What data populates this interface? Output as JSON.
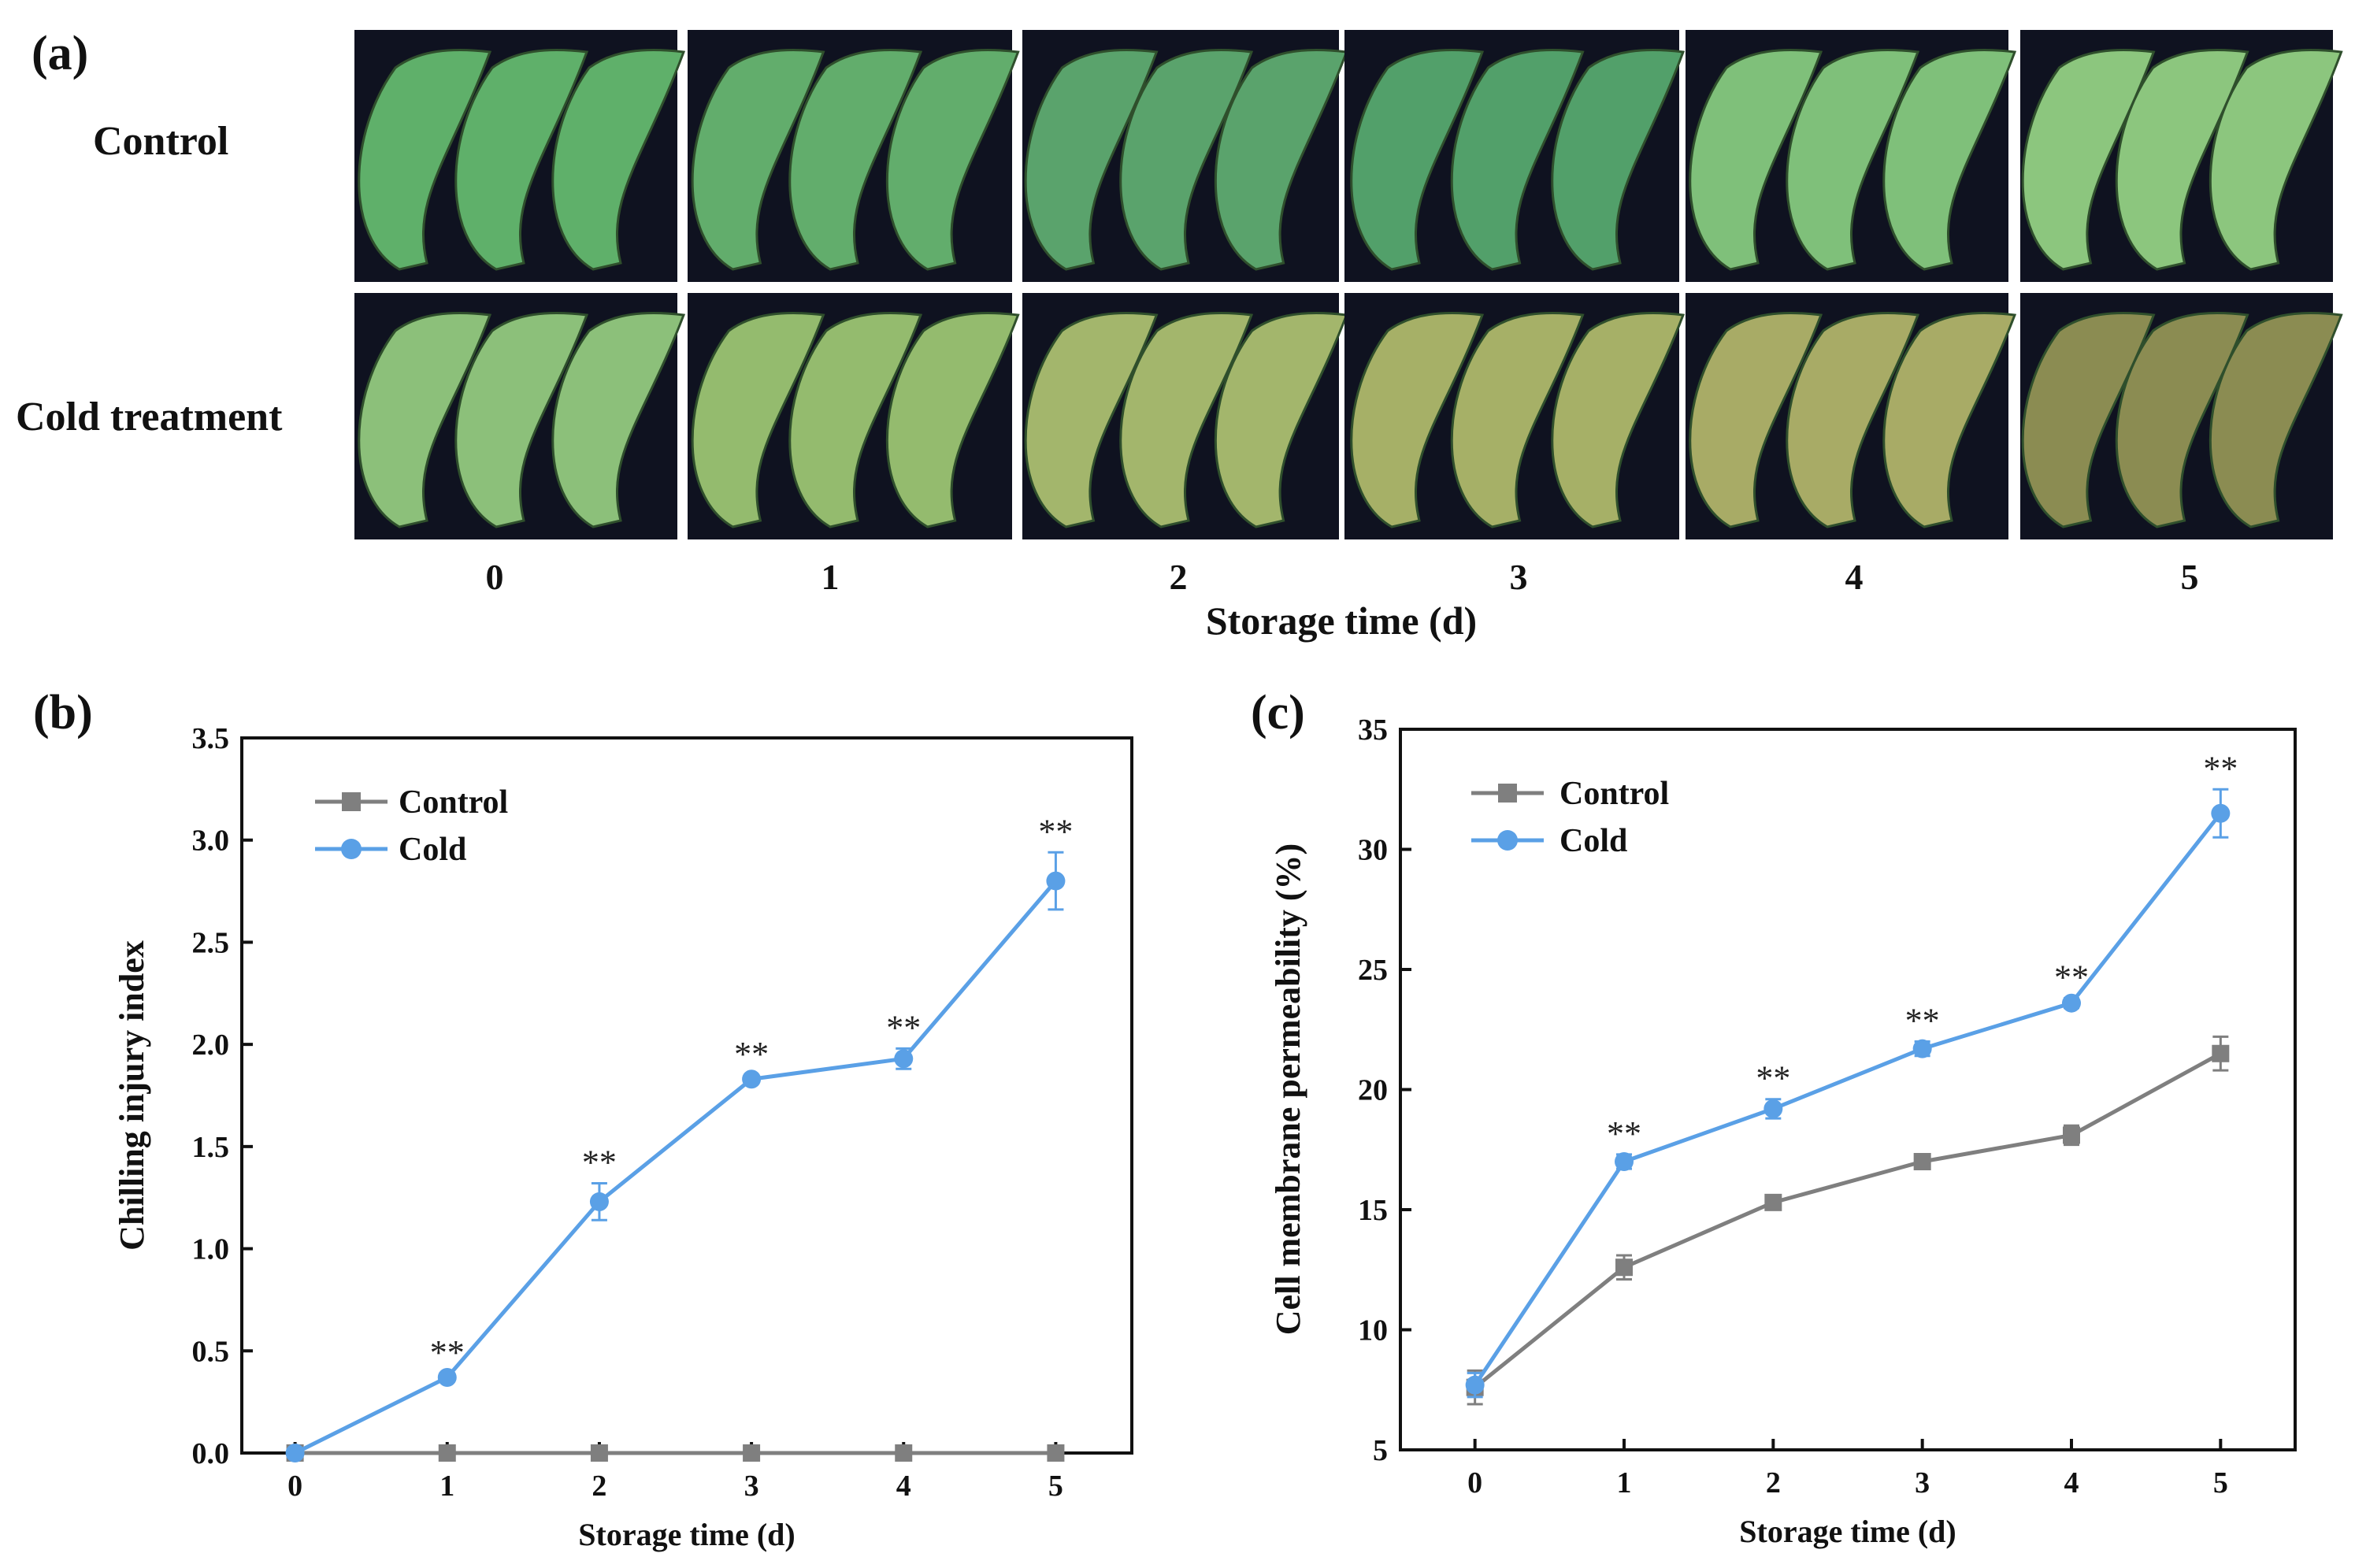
{
  "panel_a": {
    "label": "(a)",
    "row_labels": [
      "Control",
      "Cold treatment"
    ],
    "time_labels": [
      "0",
      "1",
      "2",
      "3",
      "4",
      "5"
    ],
    "xlabel": "Storage time (d)",
    "colors": {
      "background": "#0f1220",
      "control": [
        "#5fb06a",
        "#62ad6c",
        "#5aa36c",
        "#52a06a",
        "#7fc07a",
        "#8cc67e"
      ],
      "cold": [
        "#8cc07a",
        "#94bb6e",
        "#a3b66c",
        "#a6b067",
        "#a8ab66",
        "#8b8c52"
      ]
    }
  },
  "chart_data": [
    {
      "id": "b",
      "panel_label": "(b)",
      "type": "line",
      "x": [
        0,
        1,
        2,
        3,
        4,
        5
      ],
      "xticks": [
        "0",
        "1",
        "2",
        "3",
        "4",
        "5"
      ],
      "yticks": [
        "0.0",
        "0.5",
        "1.0",
        "1.5",
        "2.0",
        "2.5",
        "3.0",
        "3.5"
      ],
      "xlim": [
        -0.35,
        5.5
      ],
      "ylim": [
        0,
        3.5
      ],
      "xlabel": "Storage time (d)",
      "ylabel": "Chilling injury index",
      "legend": [
        "Control",
        "Cold"
      ],
      "legend_position": "top-left",
      "series": [
        {
          "name": "Control",
          "marker": "square",
          "color": "#7f7f7f",
          "values": [
            0,
            0,
            0,
            0,
            0,
            0
          ],
          "err": [
            0,
            0,
            0,
            0,
            0,
            0
          ]
        },
        {
          "name": "Cold",
          "marker": "circle",
          "color": "#5aa0e6",
          "values": [
            0,
            0.37,
            1.23,
            1.83,
            1.93,
            2.8
          ],
          "err": [
            0,
            0.02,
            0.09,
            0.02,
            0.05,
            0.14
          ]
        }
      ],
      "annotations": [
        {
          "x": 1,
          "text": "**"
        },
        {
          "x": 2,
          "text": "**"
        },
        {
          "x": 3,
          "text": "**"
        },
        {
          "x": 4,
          "text": "**"
        },
        {
          "x": 5,
          "text": "**"
        }
      ]
    },
    {
      "id": "c",
      "panel_label": "(c)",
      "type": "line",
      "x": [
        0,
        1,
        2,
        3,
        4,
        5
      ],
      "xticks": [
        "0",
        "1",
        "2",
        "3",
        "4",
        "5"
      ],
      "yticks": [
        "5",
        "10",
        "15",
        "20",
        "25",
        "30",
        "35"
      ],
      "xlim": [
        -0.5,
        5.5
      ],
      "ylim": [
        5,
        35
      ],
      "xlabel": "Storage time (d)",
      "ylabel": "Cell membrane permeability (%)",
      "legend": [
        "Control",
        "Cold"
      ],
      "legend_position": "top-left",
      "series": [
        {
          "name": "Control",
          "marker": "square",
          "color": "#7f7f7f",
          "values": [
            7.6,
            12.6,
            15.3,
            17.0,
            18.1,
            21.5
          ],
          "err": [
            0.7,
            0.5,
            0.3,
            0.2,
            0.4,
            0.7
          ]
        },
        {
          "name": "Cold",
          "marker": "circle",
          "color": "#5aa0e6",
          "values": [
            7.7,
            17.0,
            19.2,
            21.7,
            23.6,
            31.5
          ],
          "err": [
            0.5,
            0.3,
            0.4,
            0.3,
            0.2,
            1.0
          ]
        }
      ],
      "annotations": [
        {
          "x": 1,
          "text": "**"
        },
        {
          "x": 2,
          "text": "**"
        },
        {
          "x": 3,
          "text": "**"
        },
        {
          "x": 4,
          "text": "**"
        },
        {
          "x": 5,
          "text": "**"
        }
      ]
    }
  ]
}
